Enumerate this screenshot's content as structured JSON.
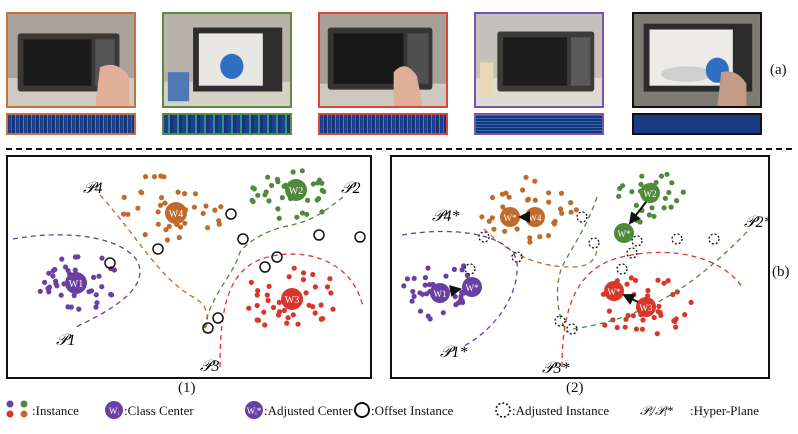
{
  "labels": {
    "row_a": "(a)",
    "row_b": "(b)",
    "panel_1": "(1)",
    "panel_2": "(2)"
  },
  "thumbnails": [
    {
      "border": "#c8713a"
    },
    {
      "border": "#5f8a3f"
    },
    {
      "border": "#d8463c"
    },
    {
      "border": "#7a52b0"
    },
    {
      "border": "#111111"
    }
  ],
  "colors": {
    "purple": "#6a3fa3",
    "orange": "#c06a2b",
    "green": "#4e8a3a",
    "red": "#d9362b"
  },
  "panel1": {
    "hyperplanes": [
      "𝒫4",
      "𝒫2",
      "𝒫1",
      "𝒫3"
    ],
    "centers": [
      "W1",
      "W2",
      "W3",
      "W4"
    ]
  },
  "panel2": {
    "hyperplanes": [
      "𝒫4*",
      "𝒫2*",
      "𝒫1*",
      "𝒫3*"
    ],
    "centers": [
      "W4",
      "W*",
      "W2",
      "W*",
      "W1",
      "W*",
      "W3",
      "W*"
    ]
  },
  "legend": {
    "instance": ":Instance",
    "class_center": ":Class Center",
    "class_center_icon": "Wᵢ",
    "adjusted_center": ":Adjusted Center",
    "adjusted_center_icon": "Wᵢ*",
    "offset_instance": ":Offset Instance",
    "adjusted_instance": ":Adjusted Instance",
    "hyperplane_symbol": "𝒫ᵢ/𝒫ᵢ*",
    "hyperplane": ":Hyper-Plane"
  }
}
